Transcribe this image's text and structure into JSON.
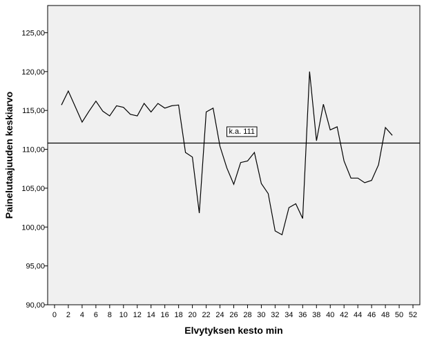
{
  "chart_data": {
    "type": "line",
    "title": "",
    "xlabel": "Elvytyksen kesto min",
    "ylabel": "Painelutaajuuden keskiarvo",
    "xlim": [
      -1,
      53
    ],
    "ylim": [
      90,
      128.5
    ],
    "x_ticks": [
      0,
      2,
      4,
      6,
      8,
      10,
      12,
      14,
      16,
      18,
      20,
      22,
      24,
      26,
      28,
      30,
      32,
      34,
      36,
      38,
      40,
      42,
      44,
      46,
      48,
      50,
      52
    ],
    "x_tick_labels": [
      "0",
      "2",
      "4",
      "6",
      "8",
      "10",
      "12",
      "14",
      "16",
      "18",
      "20",
      "22",
      "24",
      "26",
      "28",
      "30",
      "32",
      "34",
      "36",
      "38",
      "40",
      "42",
      "44",
      "46",
      "48",
      "50",
      "52"
    ],
    "y_ticks": [
      90,
      95,
      100,
      105,
      110,
      115,
      120,
      125
    ],
    "y_tick_labels": [
      "90,00",
      "95,00",
      "100,00",
      "105,00",
      "110,00",
      "115,00",
      "120,00",
      "125,00"
    ],
    "grid": false,
    "plot_background": "#f0f0f0",
    "line_color": "#000000",
    "series": [
      {
        "x": [
          1,
          2,
          3,
          4,
          5,
          6,
          7,
          8,
          9,
          10,
          11,
          12,
          13,
          14,
          15,
          16,
          17,
          18,
          19,
          20,
          21,
          22,
          23,
          24,
          25,
          26,
          27,
          28,
          29,
          30,
          31,
          32,
          33,
          34,
          35,
          36,
          37,
          38,
          39,
          40,
          41,
          42,
          43,
          44,
          45,
          46,
          47,
          48,
          49
        ],
        "y": [
          115.7,
          117.5,
          115.5,
          113.5,
          114.9,
          116.2,
          114.9,
          114.3,
          115.6,
          115.4,
          114.5,
          114.3,
          115.9,
          114.8,
          115.9,
          115.3,
          115.6,
          115.7,
          109.6,
          109.0,
          101.8,
          114.8,
          115.3,
          110.4,
          107.6,
          105.5,
          108.3,
          108.5,
          109.6,
          105.6,
          104.3,
          99.5,
          99.0,
          102.5,
          103.0,
          101.1,
          120.0,
          111.1,
          115.8,
          112.5,
          112.9,
          108.5,
          106.3,
          106.3,
          105.7,
          106.0,
          108.0,
          112.8,
          111.8
        ]
      }
    ],
    "reference_line": {
      "y": 110.8,
      "label": "k.a. 111"
    }
  }
}
